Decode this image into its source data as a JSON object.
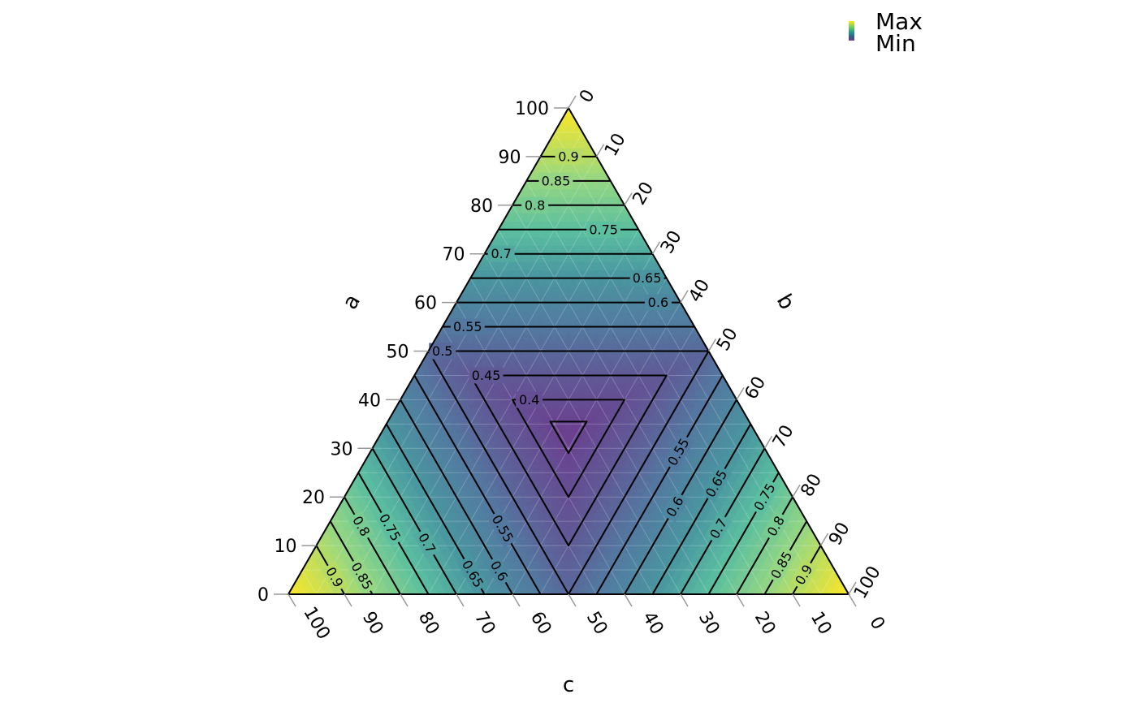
{
  "chart_data": {
    "type": "ternary-contour",
    "axes": {
      "a": {
        "title": "a",
        "ticks": [
          "0",
          "10",
          "20",
          "30",
          "40",
          "50",
          "60",
          "70",
          "80",
          "90",
          "100"
        ]
      },
      "b": {
        "title": "b",
        "ticks": [
          "0",
          "10",
          "20",
          "30",
          "40",
          "50",
          "60",
          "70",
          "80",
          "90",
          "100"
        ]
      },
      "c": {
        "title": "c",
        "ticks": [
          "100",
          "90",
          "80",
          "70",
          "60",
          "50",
          "40",
          "30",
          "20",
          "10",
          "0"
        ]
      }
    },
    "function": "value = max(a, b, c) as fraction of total",
    "range": [
      0.3333,
      1.0
    ],
    "contour_levels": [
      0.4,
      0.45,
      0.5,
      0.55,
      0.6,
      0.65,
      0.7,
      0.75,
      0.8,
      0.85,
      0.9
    ],
    "colormap": "viridis",
    "colors": {
      "min": "#440154",
      "low": "#3b528b",
      "mid": "#21918c",
      "high": "#5ec962",
      "max": "#fde725"
    },
    "legend": {
      "max_label": "Max",
      "min_label": "Min",
      "placement": "top-right"
    },
    "grid": true,
    "contour_label_positions": [
      {
        "level": "0.9",
        "edge": "a",
        "t": 0.5
      },
      {
        "level": "0.85",
        "edge": "a",
        "t": 0.35
      },
      {
        "level": "0.8",
        "edge": "a",
        "t": 0.2
      },
      {
        "level": "0.75",
        "edge": "a",
        "t": 0.75
      },
      {
        "level": "0.7",
        "edge": "a",
        "t": 0.1
      },
      {
        "level": "0.65",
        "edge": "a",
        "t": 0.9
      },
      {
        "level": "0.6",
        "edge": "a",
        "t": 0.9
      },
      {
        "level": "0.55",
        "edge": "a",
        "t": 0.1
      },
      {
        "level": "0.5",
        "edge": "a",
        "t": 0.05
      },
      {
        "level": "0.45",
        "edge": "a",
        "t": 0.08
      },
      {
        "level": "0.4",
        "edge": "a",
        "t": 0.15
      },
      {
        "level": "0.6",
        "edge": "c",
        "t": 0.12
      },
      {
        "level": "0.65",
        "edge": "c",
        "t": 0.12
      },
      {
        "level": "0.55",
        "edge": "c",
        "t": 0.3
      },
      {
        "level": "0.7",
        "edge": "c",
        "t": 0.35
      },
      {
        "level": "0.75",
        "edge": "c",
        "t": 0.55
      },
      {
        "level": "0.8",
        "edge": "c",
        "t": 0.7
      },
      {
        "level": "0.85",
        "edge": "c",
        "t": 0.25
      },
      {
        "level": "0.9",
        "edge": "c",
        "t": 0.35
      },
      {
        "level": "0.55",
        "edge": "b",
        "t": 0.35
      },
      {
        "level": "0.6",
        "edge": "b",
        "t": 0.55
      },
      {
        "level": "0.65",
        "edge": "b",
        "t": 0.35
      },
      {
        "level": "0.7",
        "edge": "b",
        "t": 0.55
      },
      {
        "level": "0.75",
        "edge": "b",
        "t": 0.2
      },
      {
        "level": "0.8",
        "edge": "b",
        "t": 0.3
      },
      {
        "level": "0.85",
        "edge": "b",
        "t": 0.6
      },
      {
        "level": "0.9",
        "edge": "b",
        "t": 0.6
      }
    ]
  }
}
